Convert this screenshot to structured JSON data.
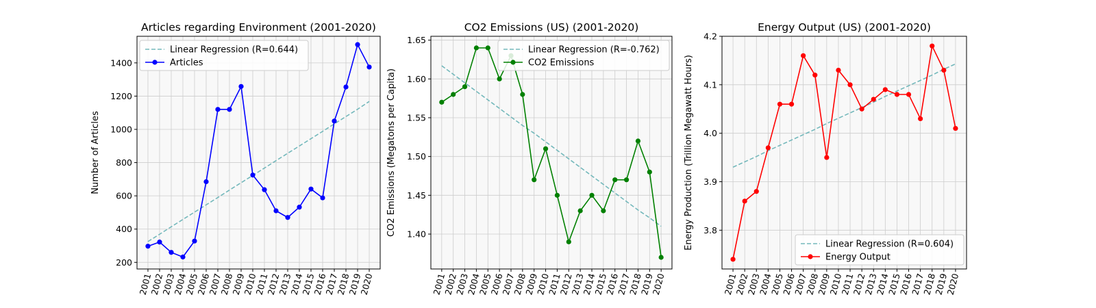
{
  "colors": {
    "background": "#f8f8f8",
    "grid": "#cccccc",
    "regression": "#73b8bb"
  },
  "chart_data": [
    {
      "type": "line",
      "title": "Articles regarding Environment (2001-2020)",
      "xlabel": "",
      "ylabel": "Number of Articles",
      "x": [
        "2001",
        "2002",
        "2003",
        "2004",
        "2005",
        "2006",
        "2007",
        "2008",
        "2009",
        "2010",
        "2011",
        "2012",
        "2013",
        "2014",
        "2015",
        "2016",
        "2017",
        "2018",
        "2019",
        "2020"
      ],
      "ylim": [
        160,
        1560
      ],
      "yticks": [
        200,
        400,
        600,
        800,
        1000,
        1200,
        1400
      ],
      "grid": true,
      "legend_position": "top-left",
      "series": [
        {
          "name": "Articles",
          "color": "#0000ff",
          "marker": "circle",
          "values": [
            297,
            322,
            260,
            232,
            328,
            685,
            1120,
            1120,
            1258,
            725,
            637,
            510,
            470,
            532,
            641,
            588,
            1050,
            1255,
            1510,
            1375
          ]
        },
        {
          "name": "Linear Regression (R=0.644)",
          "color": "#73b8bb",
          "style": "dashed",
          "values": [
            325,
            369,
            414,
            458,
            502,
            546,
            590,
            635,
            679,
            723,
            767,
            812,
            856,
            900,
            944,
            988,
            1033,
            1077,
            1121,
            1168
          ]
        }
      ]
    },
    {
      "type": "line",
      "title": "CO2 Emissions (US) (2001-2020)",
      "xlabel": "",
      "ylabel": "CO2 Emissions (Megatons per Capita)",
      "x": [
        "2001",
        "2002",
        "2003",
        "2004",
        "2005",
        "2006",
        "2007",
        "2008",
        "2009",
        "2010",
        "2011",
        "2012",
        "2013",
        "2014",
        "2015",
        "2016",
        "2017",
        "2018",
        "2019",
        "2020"
      ],
      "ylim": [
        1.355,
        1.655
      ],
      "yticks": [
        1.4,
        1.45,
        1.5,
        1.55,
        1.6,
        1.65
      ],
      "ytick_labels": [
        "1.40",
        "1.45",
        "1.50",
        "1.55",
        "1.60",
        "1.65"
      ],
      "grid": true,
      "legend_position": "top-right",
      "series": [
        {
          "name": "CO2 Emissions",
          "color": "#008000",
          "marker": "circle",
          "values": [
            1.57,
            1.58,
            1.59,
            1.64,
            1.64,
            1.6,
            1.63,
            1.58,
            1.47,
            1.51,
            1.45,
            1.39,
            1.43,
            1.45,
            1.43,
            1.47,
            1.47,
            1.52,
            1.48,
            1.37
          ]
        },
        {
          "name": "Linear Regression (R=-0.762)",
          "color": "#73b8bb",
          "style": "dashed",
          "values": [
            1.617,
            1.606,
            1.595,
            1.584,
            1.573,
            1.562,
            1.551,
            1.54,
            1.53,
            1.519,
            1.508,
            1.497,
            1.486,
            1.475,
            1.464,
            1.453,
            1.442,
            1.431,
            1.421,
            1.41
          ]
        }
      ]
    },
    {
      "type": "line",
      "title": "Energy Output (US) (2001-2020)",
      "xlabel": "",
      "ylabel": "Energy Production (Trillion Megawatt Hours)",
      "x": [
        "2001",
        "2002",
        "2003",
        "2004",
        "2005",
        "2006",
        "2007",
        "2008",
        "2009",
        "2010",
        "2011",
        "2012",
        "2013",
        "2014",
        "2015",
        "2016",
        "2017",
        "2018",
        "2019",
        "2020"
      ],
      "ylim": [
        3.72,
        4.2
      ],
      "yticks": [
        3.8,
        3.9,
        4.0,
        4.1,
        4.2
      ],
      "ytick_labels": [
        "3.8",
        "3.9",
        "4.0",
        "4.1",
        "4.2"
      ],
      "grid": true,
      "legend_position": "bottom-right",
      "series": [
        {
          "name": "Energy Output",
          "color": "#ff0000",
          "marker": "circle",
          "values": [
            3.74,
            3.86,
            3.88,
            3.97,
            4.06,
            4.06,
            4.16,
            4.12,
            3.95,
            4.13,
            4.1,
            4.05,
            4.07,
            4.09,
            4.08,
            4.08,
            4.03,
            4.18,
            4.13,
            4.01
          ]
        },
        {
          "name": "Linear Regression (R=0.604)",
          "color": "#73b8bb",
          "style": "dashed",
          "values": [
            3.93,
            3.941,
            3.952,
            3.964,
            3.975,
            3.986,
            3.997,
            4.008,
            4.02,
            4.031,
            4.042,
            4.053,
            4.064,
            4.076,
            4.087,
            4.098,
            4.109,
            4.12,
            4.132,
            4.143
          ]
        }
      ]
    }
  ]
}
